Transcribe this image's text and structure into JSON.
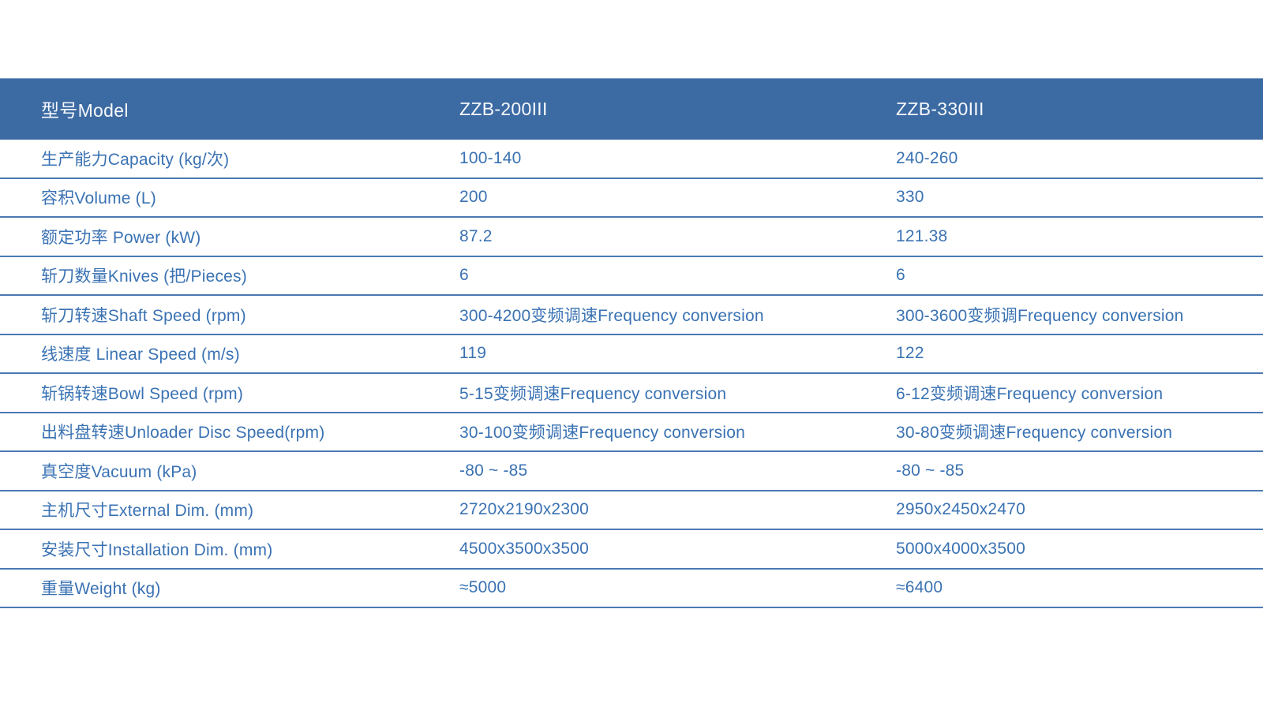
{
  "colors": {
    "header_bg": "#3c6aa3",
    "cell_text": "#3a72b3",
    "row_line": "#4b79b2"
  },
  "table": {
    "columns": [
      "型号Model",
      "ZZB-200III",
      "ZZB-330III"
    ],
    "rows": [
      {
        "label": "生产能力Capacity (kg/次)",
        "zzb200": "100-140",
        "zzb330": "240-260"
      },
      {
        "label": "容积Volume (L)",
        "zzb200": "200",
        "zzb330": "330"
      },
      {
        "label": "额定功率 Power (kW)",
        "zzb200": "87.2",
        "zzb330": "121.38"
      },
      {
        "label": "斩刀数量Knives (把/Pieces)",
        "zzb200": "6",
        "zzb330": "6"
      },
      {
        "label": "斩刀转速Shaft Speed (rpm)",
        "zzb200": "300-4200变频调速Frequency conversion",
        "zzb330": "300-3600变频调Frequency conversion"
      },
      {
        "label": "线速度 Linear Speed (m/s)",
        "zzb200": "119",
        "zzb330": "122"
      },
      {
        "label": "斩锅转速Bowl Speed (rpm)",
        "zzb200": "5-15变频调速Frequency conversion",
        "zzb330": "6-12变频调速Frequency conversion"
      },
      {
        "label": "出料盘转速Unloader Disc Speed(rpm)",
        "zzb200": "30-100变频调速Frequency conversion",
        "zzb330": "30-80变频调速Frequency conversion"
      },
      {
        "label": "真空度Vacuum (kPa)",
        "zzb200": "-80 ~ -85",
        "zzb330": "-80 ~ -85"
      },
      {
        "label": "主机尺寸External Dim. (mm)",
        "zzb200": "2720x2190x2300",
        "zzb330": "2950x2450x2470"
      },
      {
        "label": "安装尺寸Installation Dim. (mm)",
        "zzb200": "4500x3500x3500",
        "zzb330": "5000x4000x3500"
      },
      {
        "label": "重量Weight (kg)",
        "zzb200": "≈5000",
        "zzb330": "≈6400"
      }
    ]
  }
}
